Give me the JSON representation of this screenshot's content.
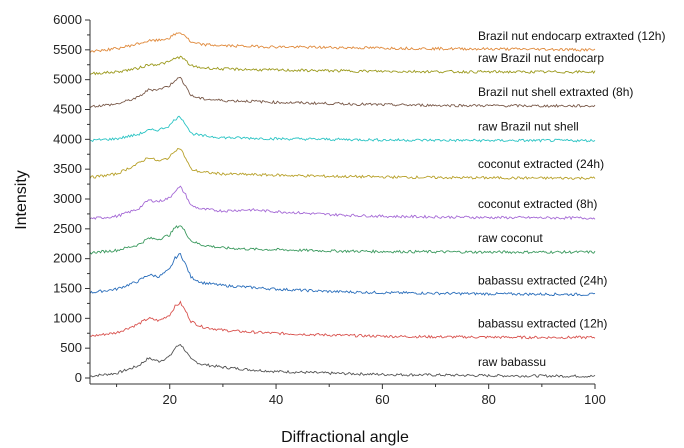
{
  "chart_data": {
    "type": "line",
    "xlabel": "Diffractional angle",
    "ylabel": "Intensity",
    "xlim": [
      5,
      100
    ],
    "ylim": [
      0,
      6000
    ],
    "x_ticks": [
      20,
      40,
      60,
      80,
      100
    ],
    "y_ticks": [
      0,
      500,
      1000,
      1500,
      2000,
      2500,
      3000,
      3500,
      4000,
      4500,
      5000,
      5500,
      6000
    ],
    "grid": false,
    "x": [
      5,
      10,
      14,
      16,
      18,
      20,
      21,
      22,
      23,
      24,
      26,
      30,
      35,
      40,
      50,
      60,
      70,
      80,
      90,
      100
    ],
    "series": [
      {
        "name": "raw babassu",
        "color": "#555555",
        "values": [
          30,
          80,
          200,
          330,
          280,
          360,
          500,
          570,
          450,
          310,
          230,
          180,
          140,
          110,
          80,
          60,
          50,
          40,
          35,
          30
        ]
      },
      {
        "name": "babassu extracted (12h)",
        "color": "#d9534f",
        "values": [
          700,
          760,
          900,
          1000,
          960,
          1060,
          1200,
          1260,
          1120,
          950,
          860,
          800,
          770,
          750,
          720,
          700,
          690,
          685,
          680,
          680
        ]
      },
      {
        "name": "babassu extracted (24h)",
        "color": "#2a6ebb",
        "values": [
          1430,
          1490,
          1620,
          1730,
          1700,
          1820,
          2010,
          2080,
          1900,
          1690,
          1600,
          1550,
          1520,
          1490,
          1450,
          1430,
          1420,
          1410,
          1405,
          1400
        ]
      },
      {
        "name": "raw coconut",
        "color": "#3c9a5f",
        "values": [
          2100,
          2140,
          2230,
          2340,
          2330,
          2400,
          2520,
          2560,
          2440,
          2300,
          2230,
          2180,
          2160,
          2150,
          2130,
          2120,
          2115,
          2110,
          2110,
          2110
        ]
      },
      {
        "name": "coconut extracted (8h)",
        "color": "#a66bd6",
        "values": [
          2670,
          2710,
          2830,
          2980,
          2960,
          3020,
          3140,
          3200,
          3070,
          2890,
          2830,
          2800,
          2820,
          2790,
          2740,
          2710,
          2700,
          2690,
          2685,
          2680
        ]
      },
      {
        "name": "coconut extracted (24h)",
        "color": "#b8a12a",
        "values": [
          3360,
          3420,
          3590,
          3700,
          3630,
          3700,
          3820,
          3850,
          3680,
          3500,
          3450,
          3420,
          3410,
          3400,
          3380,
          3370,
          3360,
          3355,
          3350,
          3350
        ]
      },
      {
        "name": "raw Brazil nut shell",
        "color": "#2bc4c4",
        "values": [
          3980,
          4010,
          4080,
          4150,
          4160,
          4230,
          4340,
          4380,
          4260,
          4100,
          4060,
          4030,
          4020,
          4010,
          4000,
          3990,
          3985,
          3980,
          3980,
          3980
        ]
      },
      {
        "name": "Brazil nut shell extraxted (8h)",
        "color": "#7a5a4a",
        "values": [
          4550,
          4590,
          4700,
          4830,
          4840,
          4900,
          5000,
          5030,
          4900,
          4730,
          4680,
          4650,
          4640,
          4620,
          4600,
          4580,
          4570,
          4565,
          4560,
          4560
        ]
      },
      {
        "name": "raw Brazil nut endocarp",
        "color": "#9c9a1e",
        "values": [
          5100,
          5130,
          5190,
          5250,
          5260,
          5300,
          5360,
          5380,
          5320,
          5230,
          5200,
          5180,
          5170,
          5160,
          5150,
          5140,
          5135,
          5130,
          5130,
          5130
        ]
      },
      {
        "name": "Brazil nut endocarp extraxted (12h)",
        "color": "#e08a3c",
        "values": [
          5470,
          5520,
          5600,
          5650,
          5660,
          5700,
          5760,
          5790,
          5730,
          5620,
          5590,
          5570,
          5560,
          5550,
          5540,
          5530,
          5520,
          5515,
          5510,
          5500
        ]
      }
    ]
  }
}
